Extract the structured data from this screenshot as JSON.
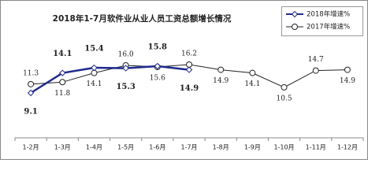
{
  "chart_data": {
    "type": "line",
    "title": "2018年1-7月软件业从业人员工资总额增长情况",
    "categories": [
      "1-2月",
      "1-3月",
      "1-4月",
      "1-5月",
      "1-6月",
      "1-7月",
      "1-8月",
      "1-9月",
      "1-10月",
      "1-11月",
      "1-12月"
    ],
    "series": [
      {
        "name": "2018年增速%",
        "color": "#1f2a8c",
        "values": [
          9.1,
          14.1,
          15.4,
          15.3,
          15.8,
          14.9,
          null,
          null,
          null,
          null,
          null
        ],
        "value_labels": [
          "9.1",
          "14.1",
          "15.4",
          "15.3",
          "15.8",
          "14.9",
          null,
          null,
          null,
          null,
          null
        ]
      },
      {
        "name": "2017年增速%",
        "color": "#222222",
        "values": [
          11.3,
          11.8,
          14.1,
          16.0,
          15.6,
          16.2,
          14.9,
          14.1,
          10.5,
          14.7,
          14.9
        ],
        "value_labels": [
          "11.3",
          "11.8",
          "14.1",
          "16.0",
          "15.6",
          "16.2",
          "14.9",
          "14.1",
          "10.5",
          "14.7",
          "14.9"
        ]
      }
    ],
    "legend": "upper right"
  }
}
